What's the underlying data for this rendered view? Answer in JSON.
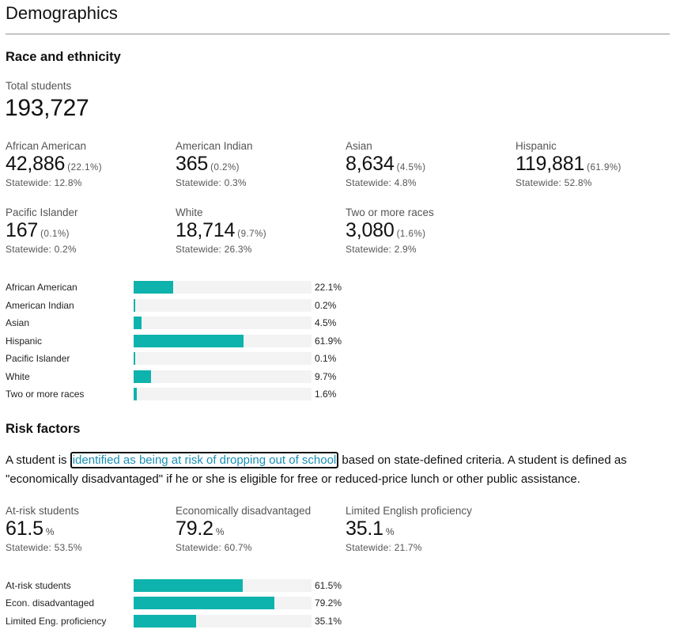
{
  "header": {
    "title": "Demographics"
  },
  "race": {
    "section_title": "Race and ethnicity",
    "total_label": "Total students",
    "total_value": "193,727",
    "groups": [
      {
        "label": "African American",
        "count": "42,886",
        "pct": "(22.1%)",
        "statewide": "Statewide: 12.8%"
      },
      {
        "label": "American Indian",
        "count": "365",
        "pct": "(0.2%)",
        "statewide": "Statewide: 0.3%"
      },
      {
        "label": "Asian",
        "count": "8,634",
        "pct": "(4.5%)",
        "statewide": "Statewide: 4.8%"
      },
      {
        "label": "Hispanic",
        "count": "119,881",
        "pct": "(61.9%)",
        "statewide": "Statewide: 52.8%"
      },
      {
        "label": "Pacific Islander",
        "count": "167",
        "pct": "(0.1%)",
        "statewide": "Statewide: 0.2%"
      },
      {
        "label": "White",
        "count": "18,714",
        "pct": "(9.7%)",
        "statewide": "Statewide: 26.3%"
      },
      {
        "label": "Two or more races",
        "count": "3,080",
        "pct": "(1.6%)",
        "statewide": "Statewide: 2.9%"
      }
    ],
    "bars": [
      {
        "label": "African American",
        "value": 22.1,
        "text": "22.1%"
      },
      {
        "label": "American Indian",
        "value": 0.2,
        "text": "0.2%"
      },
      {
        "label": "Asian",
        "value": 4.5,
        "text": "4.5%"
      },
      {
        "label": "Hispanic",
        "value": 61.9,
        "text": "61.9%"
      },
      {
        "label": "Pacific Islander",
        "value": 0.1,
        "text": "0.1%"
      },
      {
        "label": "White",
        "value": 9.7,
        "text": "9.7%"
      },
      {
        "label": "Two or more races",
        "value": 1.6,
        "text": "1.6%"
      }
    ]
  },
  "risk": {
    "section_title": "Risk factors",
    "para_before": "A student is ",
    "para_link": "identified as being at risk of dropping out of school",
    "para_after": " based on state-defined criteria. A student is defined as \"economically disadvantaged\" if he or she is eligible for free or reduced-price lunch or other public assistance.",
    "stats": [
      {
        "label": "At-risk students",
        "value": "61.5",
        "unit": "%",
        "statewide": "Statewide: 53.5%"
      },
      {
        "label": "Economically disadvantaged",
        "value": "79.2",
        "unit": "%",
        "statewide": "Statewide: 60.7%"
      },
      {
        "label": "Limited English proficiency",
        "value": "35.1",
        "unit": "%",
        "statewide": "Statewide: 21.7%"
      }
    ],
    "bars": [
      {
        "label": "At-risk students",
        "value": 61.5,
        "text": "61.5%"
      },
      {
        "label": "Econ. disadvantaged",
        "value": 79.2,
        "text": "79.2%"
      },
      {
        "label": "Limited Eng. proficiency",
        "value": 35.1,
        "text": "35.1%"
      }
    ]
  },
  "colors": {
    "bar_fill": "#0db3ac",
    "bar_track": "#f3f3f3",
    "link": "#1a8fb5"
  },
  "chart_data": [
    {
      "type": "bar",
      "title": "Race and ethnicity",
      "categories": [
        "African American",
        "American Indian",
        "Asian",
        "Hispanic",
        "Pacific Islander",
        "White",
        "Two or more races"
      ],
      "values": [
        22.1,
        0.2,
        4.5,
        61.9,
        0.1,
        9.7,
        1.6
      ],
      "xlabel": "",
      "ylabel": "",
      "xlim": [
        0,
        100
      ],
      "orientation": "horizontal"
    },
    {
      "type": "bar",
      "title": "Risk factors",
      "categories": [
        "At-risk students",
        "Econ. disadvantaged",
        "Limited Eng. proficiency"
      ],
      "values": [
        61.5,
        79.2,
        35.1
      ],
      "xlabel": "",
      "ylabel": "",
      "xlim": [
        0,
        100
      ],
      "orientation": "horizontal"
    }
  ]
}
